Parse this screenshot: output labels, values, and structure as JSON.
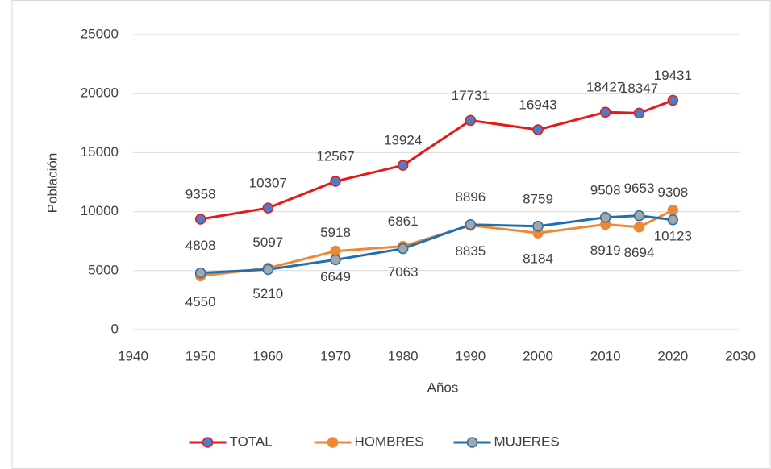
{
  "chart_data": {
    "type": "line",
    "x": [
      1950,
      1960,
      1970,
      1980,
      1990,
      2000,
      2010,
      2015,
      2020
    ],
    "series": [
      {
        "name": "TOTAL",
        "color": "#e81818",
        "marker_fill": "#4a7ec8",
        "values": [
          9358,
          10307,
          12567,
          13924,
          17731,
          16943,
          18427,
          18347,
          19431
        ]
      },
      {
        "name": "HOMBRES",
        "color": "#ed8936",
        "marker_fill": "#ed8936",
        "values": [
          4550,
          5210,
          6649,
          7063,
          8835,
          8184,
          8919,
          8694,
          10123
        ]
      },
      {
        "name": "MUJERES",
        "color": "#1f6fb5",
        "marker_fill": "#a6a6a6",
        "values": [
          4808,
          5097,
          5918,
          6861,
          8896,
          8759,
          9508,
          9653,
          9308
        ]
      }
    ],
    "xlabel": "Años",
    "ylabel": "Población",
    "xlim": [
      1940,
      2030
    ],
    "xticks": [
      1940,
      1950,
      1960,
      1970,
      1980,
      1990,
      2000,
      2010,
      2020,
      2030
    ],
    "ylim": [
      0,
      25000
    ],
    "yticks": [
      0,
      5000,
      10000,
      15000,
      20000,
      25000
    ],
    "grid": true,
    "legend": "bottom"
  }
}
